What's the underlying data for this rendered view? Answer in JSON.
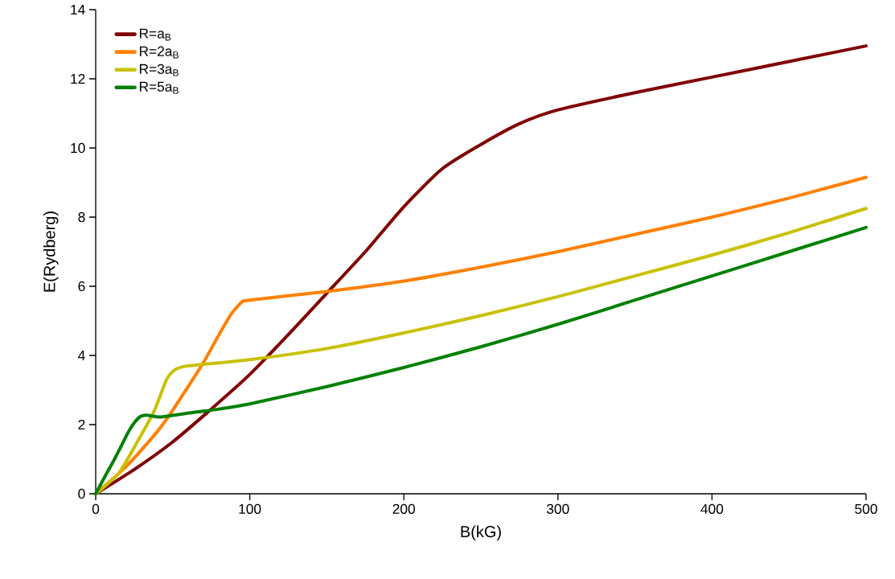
{
  "chart_data": {
    "type": "line",
    "xlabel": "B(kG)",
    "ylabel": "E(Rydberg)",
    "xlim": [
      0,
      500
    ],
    "ylim": [
      0,
      14
    ],
    "xticks": [
      0,
      100,
      200,
      300,
      400,
      500
    ],
    "yticks": [
      0,
      2,
      4,
      6,
      8,
      10,
      12,
      14
    ],
    "grid": false,
    "legend": "top left",
    "marker": "none",
    "line_style": "solid",
    "series": [
      {
        "name": "R=a$_{B}$",
        "color": "#800000",
        "x": [
          0,
          25,
          50,
          75,
          100,
          125,
          150,
          175,
          200,
          225,
          250,
          275,
          300,
          350,
          400,
          450,
          500
        ],
        "values": [
          0,
          0.7,
          1.5,
          2.45,
          3.45,
          4.6,
          5.8,
          7.0,
          8.3,
          9.4,
          10.1,
          10.7,
          11.1,
          11.6,
          12.05,
          12.5,
          12.95
        ]
      },
      {
        "name": "R=2a$_{B}$",
        "color": "#ff8000",
        "x": [
          0,
          20,
          40,
          47.5,
          60,
          70,
          80,
          88,
          95,
          100,
          150,
          200,
          250,
          300,
          350,
          400,
          450,
          500
        ],
        "values": [
          0,
          0.8,
          1.8,
          2.25,
          3.1,
          3.8,
          4.6,
          5.2,
          5.55,
          5.6,
          5.85,
          6.15,
          6.55,
          7.0,
          7.5,
          8.0,
          8.55,
          9.15
        ]
      },
      {
        "name": "R=3a$_{B}$",
        "color": "#c8c000",
        "x": [
          0,
          15,
          27,
          38,
          46,
          52,
          60,
          100,
          150,
          200,
          250,
          300,
          350,
          400,
          450,
          500
        ],
        "values": [
          0,
          0.6,
          1.5,
          2.4,
          3.3,
          3.6,
          3.7,
          3.88,
          4.2,
          4.65,
          5.15,
          5.7,
          6.3,
          6.9,
          7.55,
          8.25
        ]
      },
      {
        "name": "R=5a$_{B}$",
        "color": "#008000",
        "x": [
          0,
          6,
          11,
          16,
          22,
          28,
          33,
          42,
          60,
          80,
          100,
          150,
          200,
          250,
          300,
          350,
          400,
          450,
          500
        ],
        "values": [
          0,
          0.5,
          0.9,
          1.33,
          1.85,
          2.2,
          2.27,
          2.22,
          2.33,
          2.45,
          2.6,
          3.1,
          3.65,
          4.25,
          4.9,
          5.6,
          6.3,
          7.0,
          7.7
        ]
      }
    ]
  }
}
